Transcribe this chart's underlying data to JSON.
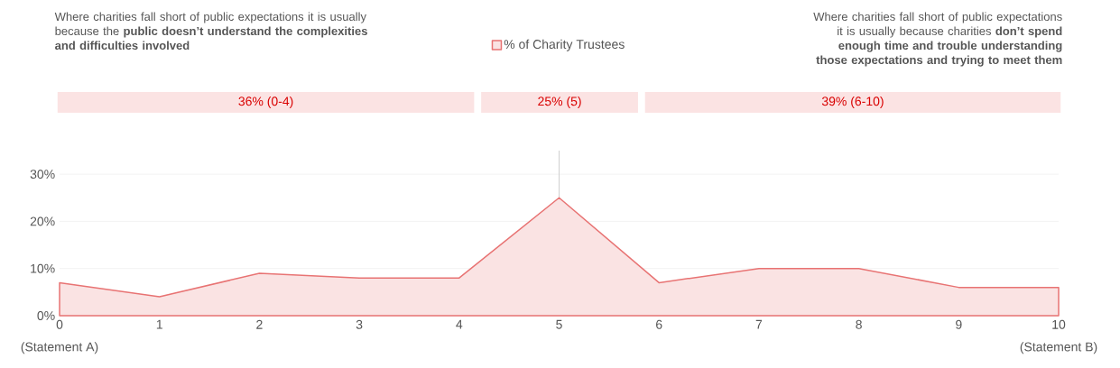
{
  "chart_data": {
    "type": "area",
    "annotations": [
      "Where charities fall short of public expectations it is usually because the **public doesn’t understand the complexities and difficulties involved**",
      "Where charities fall short of public expectations it is usually because charities **don’t spend enough time and trouble understanding those expectations and trying to meet them**",
      "(Statement A)",
      "(Statement B)",
      "36% (0-4)",
      "25% (5)",
      "39% (6-10)"
    ],
    "x": [
      0,
      1,
      2,
      3,
      4,
      5,
      6,
      7,
      8,
      9,
      10
    ],
    "series": [
      {
        "name": "% of Charity Trustees",
        "color": "#e87373",
        "values": [
          7,
          4,
          9,
          8,
          8,
          25,
          7,
          10,
          10,
          6,
          6
        ]
      }
    ],
    "xlim": [
      0,
      10
    ],
    "xticks": [
      0,
      1,
      2,
      3,
      4,
      5,
      6,
      7,
      8,
      9,
      10
    ],
    "ylim": [
      0,
      35
    ],
    "yticks": [
      {
        "value": 0,
        "label": "0%"
      },
      {
        "value": 10,
        "label": "10%"
      },
      {
        "value": 20,
        "label": "20%"
      },
      {
        "value": 30,
        "label": "30%"
      }
    ],
    "grid": "y",
    "legend": "top",
    "ref_lines": [
      {
        "axis": "x",
        "value": 5,
        "color": "#d0d0d0"
      }
    ]
  }
}
